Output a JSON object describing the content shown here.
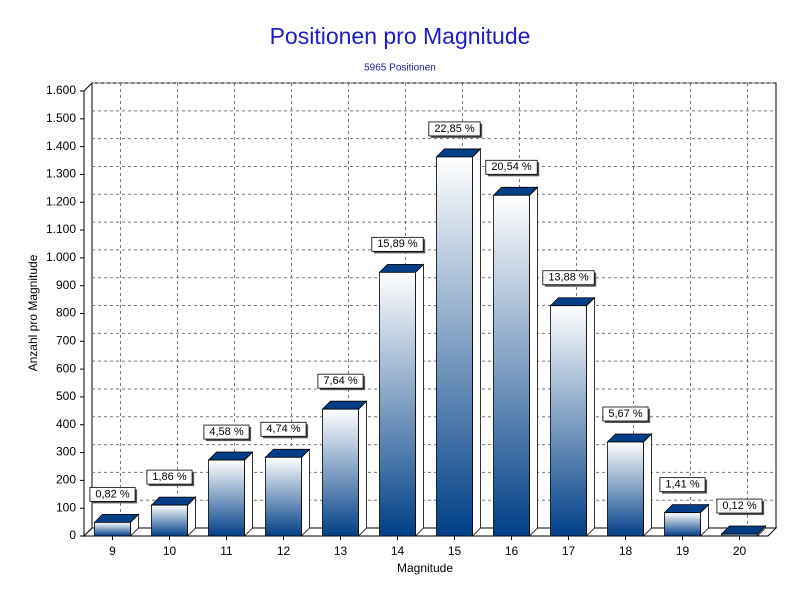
{
  "chart_data": {
    "type": "bar",
    "title": "Positionen pro Magnitude",
    "subtitle": "5965 Positionen",
    "x_label": "Magnitude",
    "y_label": "Anzahl pro Magnitude",
    "categories": [
      "9",
      "10",
      "11",
      "12",
      "13",
      "14",
      "15",
      "16",
      "17",
      "18",
      "19",
      "20"
    ],
    "values": [
      49,
      111,
      273,
      283,
      456,
      948,
      1363,
      1225,
      828,
      338,
      84,
      7
    ],
    "labels": [
      "0,82 %",
      "1,86 %",
      "4,58 %",
      "4,74 %",
      "7,64 %",
      "15,89 %",
      "22,85 %",
      "20,54 %",
      "13,88 %",
      "5,67 %",
      "1,41 %",
      "0,12 %"
    ],
    "color": "#003f87",
    "ylim": [
      0,
      1600
    ],
    "yticks": [
      0,
      100,
      200,
      300,
      400,
      500,
      600,
      700,
      800,
      900,
      {
        "value": 1000,
        "label": "1.000"
      },
      {
        "value": 1100,
        "label": "1.100"
      },
      {
        "value": 1200,
        "label": "1.200"
      },
      {
        "value": 1300,
        "label": "1.300"
      },
      {
        "value": 1400,
        "label": "1.400"
      },
      {
        "value": 1500,
        "label": "1.500"
      },
      {
        "value": 1600,
        "label": "1.600"
      }
    ],
    "grid": true
  }
}
